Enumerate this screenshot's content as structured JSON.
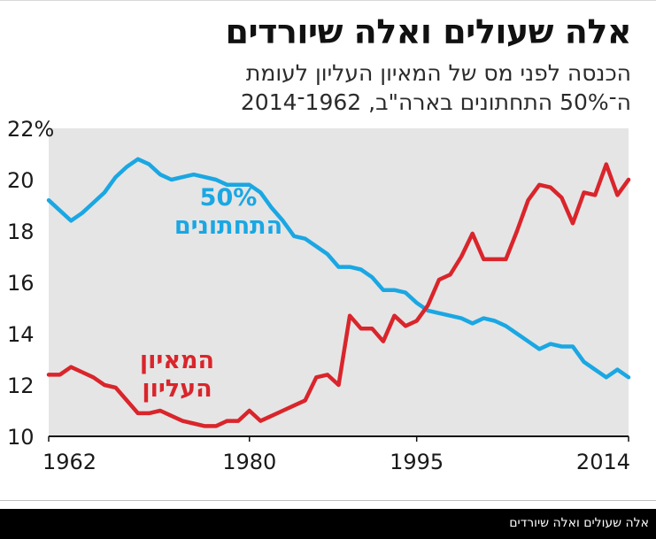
{
  "header": {
    "title": "אלה שעולים ואלה שיורדים",
    "subtitle_line1": "הכנסה לפני מס של המאיון העליון לעומת",
    "subtitle_line2": "ה־50% התחתונים בארה\"ב, 1962־2014"
  },
  "footer": {
    "caption": "אלה שעולים ואלה שיורדים",
    "background": "#000000"
  },
  "colors": {
    "plot_background": "#e5e5e5",
    "bottom50": "#1aa7e3",
    "top1": "#d9252b"
  },
  "chart_data": {
    "type": "line",
    "title": "אלה שעולים ואלה שיורדים",
    "subtitle": "הכנסה לפני מס של המאיון העליון לעומת ה־50% התחתונים בארה\"ב, 1962־2014",
    "xlabel": "",
    "ylabel": "",
    "xlim": [
      1962,
      2014
    ],
    "ylim": [
      10,
      22
    ],
    "x_ticks": [
      1962,
      1980,
      1995,
      2014
    ],
    "y_ticks": [
      10,
      12,
      14,
      16,
      18,
      20,
      22
    ],
    "y_tick_labels": [
      "10",
      "12",
      "14",
      "16",
      "18",
      "20",
      "22%"
    ],
    "grid": false,
    "legend": "inline labels",
    "series": [
      {
        "name": "50% התחתונים",
        "label_line1": "50%",
        "label_line2": "התחתונים",
        "color": "#1aa7e3",
        "x": [
          1962,
          1963,
          1964,
          1965,
          1966,
          1967,
          1968,
          1969,
          1970,
          1971,
          1972,
          1973,
          1974,
          1975,
          1976,
          1977,
          1978,
          1979,
          1980,
          1981,
          1982,
          1983,
          1984,
          1985,
          1986,
          1987,
          1988,
          1989,
          1990,
          1991,
          1992,
          1993,
          1994,
          1995,
          1996,
          1997,
          1998,
          1999,
          2000,
          2001,
          2002,
          2003,
          2004,
          2005,
          2006,
          2007,
          2008,
          2009,
          2010,
          2011,
          2012,
          2013,
          2014
        ],
        "values": [
          19.2,
          18.8,
          18.4,
          18.7,
          19.1,
          19.5,
          20.1,
          20.5,
          20.8,
          20.6,
          20.2,
          20.0,
          20.1,
          20.2,
          20.1,
          20.0,
          19.8,
          19.8,
          19.8,
          19.5,
          18.9,
          18.4,
          17.8,
          17.7,
          17.4,
          17.1,
          16.6,
          16.6,
          16.5,
          16.2,
          15.7,
          15.7,
          15.6,
          15.2,
          14.9,
          14.8,
          14.7,
          14.6,
          14.4,
          14.6,
          14.5,
          14.3,
          14.0,
          13.7,
          13.4,
          13.6,
          13.5,
          13.5,
          12.9,
          12.6,
          12.3,
          12.6,
          12.3
        ]
      },
      {
        "name": "המאיון העליון",
        "label_line1": "המאיון",
        "label_line2": "העליון",
        "color": "#d9252b",
        "x": [
          1962,
          1963,
          1964,
          1965,
          1966,
          1967,
          1968,
          1969,
          1970,
          1971,
          1972,
          1973,
          1974,
          1975,
          1976,
          1977,
          1978,
          1979,
          1980,
          1981,
          1982,
          1983,
          1984,
          1985,
          1986,
          1987,
          1988,
          1989,
          1990,
          1991,
          1992,
          1993,
          1994,
          1995,
          1996,
          1997,
          1998,
          1999,
          2000,
          2001,
          2002,
          2003,
          2004,
          2005,
          2006,
          2007,
          2008,
          2009,
          2010,
          2011,
          2012,
          2013,
          2014
        ],
        "values": [
          12.4,
          12.4,
          12.7,
          12.5,
          12.3,
          12.0,
          11.9,
          11.4,
          10.9,
          10.9,
          11.0,
          10.8,
          10.6,
          10.5,
          10.4,
          10.4,
          10.6,
          10.6,
          11.0,
          10.6,
          10.8,
          11.0,
          11.2,
          11.4,
          12.3,
          12.4,
          12.0,
          14.7,
          14.2,
          14.2,
          13.7,
          14.7,
          14.3,
          14.5,
          15.1,
          16.1,
          16.3,
          17.0,
          17.9,
          16.9,
          16.9,
          16.9,
          18.0,
          19.2,
          19.8,
          19.7,
          19.3,
          18.3,
          19.5,
          19.4,
          20.6,
          19.4,
          20.0
        ]
      }
    ]
  }
}
